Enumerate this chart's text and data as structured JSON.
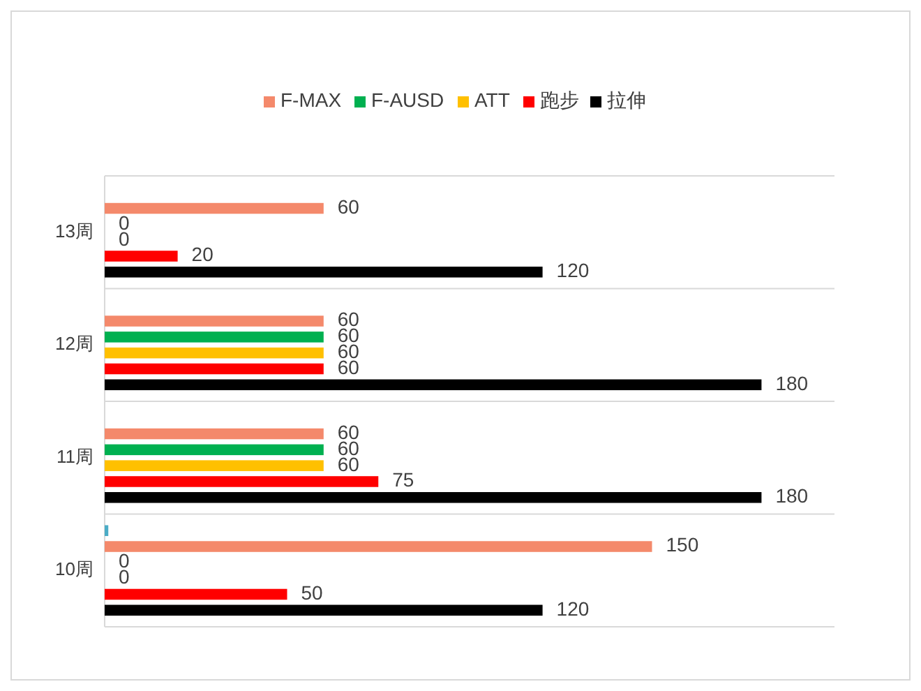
{
  "chart_data": {
    "type": "bar",
    "orientation": "horizontal",
    "categories": [
      "13周",
      "12周",
      "11周",
      "10周"
    ],
    "xlim": [
      0,
      200
    ],
    "grid": "y",
    "legend": "top",
    "tick_labels": "y",
    "series": [
      {
        "color": "#4bacc6",
        "values": [
          null,
          null,
          null,
          1
        ],
        "value_labels": [
          null,
          null,
          null,
          null
        ]
      },
      {
        "name": "F-MAX",
        "color": "#f4896b",
        "values": [
          60,
          60,
          60,
          150
        ],
        "value_labels": [
          "60",
          "60",
          "60",
          "150"
        ]
      },
      {
        "name": "F-AUSD",
        "color": "#00b050",
        "values": [
          0,
          60,
          60,
          0
        ],
        "value_labels": [
          "0",
          "60",
          "60",
          "0"
        ]
      },
      {
        "name": "ATT",
        "color": "#ffc000",
        "values": [
          0,
          60,
          60,
          0
        ],
        "value_labels": [
          "0",
          "60",
          "60",
          "0"
        ]
      },
      {
        "name": "跑步",
        "color": "#ff0000",
        "values": [
          20,
          60,
          75,
          50
        ],
        "value_labels": [
          "20",
          "60",
          "75",
          "50"
        ]
      },
      {
        "name": "拉伸",
        "color": "#000000",
        "values": [
          120,
          180,
          180,
          120
        ],
        "value_labels": [
          "120",
          "180",
          "180",
          "120"
        ]
      }
    ]
  }
}
